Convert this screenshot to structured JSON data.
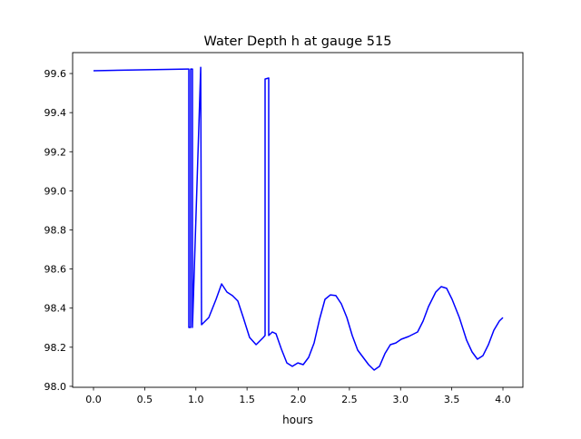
{
  "chart_data": {
    "type": "line",
    "title": "Water Depth h at gauge 515",
    "xlabel": "hours",
    "ylabel": "",
    "xlim": [
      -0.204,
      4.195
    ],
    "ylim": [
      97.995,
      99.707
    ],
    "xticks": [
      0.0,
      0.5,
      1.0,
      1.5,
      2.0,
      2.5,
      3.0,
      3.5,
      4.0
    ],
    "xtick_labels": [
      "0.0",
      "0.5",
      "1.0",
      "1.5",
      "2.0",
      "2.5",
      "3.0",
      "3.5",
      "4.0"
    ],
    "yticks": [
      98.0,
      98.2,
      98.4,
      98.6,
      98.8,
      99.0,
      99.2,
      99.4,
      99.6
    ],
    "ytick_labels": [
      "98.0",
      "98.2",
      "98.4",
      "98.6",
      "98.8",
      "99.0",
      "99.2",
      "99.4",
      "99.6"
    ],
    "grid": false,
    "series": [
      {
        "name": "h",
        "color": "#0000ff",
        "x": [
          0.0,
          0.922,
          0.931,
          0.931,
          0.949,
          0.949,
          0.967,
          0.967,
          1.047,
          1.055,
          1.126,
          1.197,
          1.251,
          1.304,
          1.357,
          1.41,
          1.463,
          1.525,
          1.588,
          1.659,
          1.676,
          1.676,
          1.712,
          1.712,
          1.747,
          1.783,
          1.836,
          1.889,
          1.942,
          1.996,
          2.049,
          2.102,
          2.155,
          2.208,
          2.262,
          2.315,
          2.368,
          2.421,
          2.475,
          2.528,
          2.581,
          2.634,
          2.687,
          2.741,
          2.794,
          2.847,
          2.9,
          2.953,
          3.007,
          3.078,
          3.166,
          3.22,
          3.273,
          3.344,
          3.397,
          3.45,
          3.503,
          3.574,
          3.645,
          3.698,
          3.751,
          3.805,
          3.858,
          3.911,
          3.965,
          4.0
        ],
        "y": [
          99.614,
          99.623,
          99.623,
          98.301,
          98.301,
          99.623,
          99.623,
          98.301,
          99.632,
          98.315,
          98.352,
          98.445,
          98.524,
          98.482,
          98.464,
          98.436,
          98.352,
          98.25,
          98.213,
          98.25,
          98.26,
          99.572,
          99.577,
          98.26,
          98.278,
          98.269,
          98.19,
          98.12,
          98.102,
          98.12,
          98.111,
          98.148,
          98.222,
          98.343,
          98.445,
          98.468,
          98.464,
          98.422,
          98.352,
          98.26,
          98.185,
          98.148,
          98.111,
          98.083,
          98.102,
          98.167,
          98.213,
          98.222,
          98.241,
          98.255,
          98.278,
          98.334,
          98.408,
          98.482,
          98.51,
          98.501,
          98.445,
          98.352,
          98.236,
          98.176,
          98.139,
          98.157,
          98.213,
          98.287,
          98.334,
          98.352
        ]
      }
    ]
  }
}
